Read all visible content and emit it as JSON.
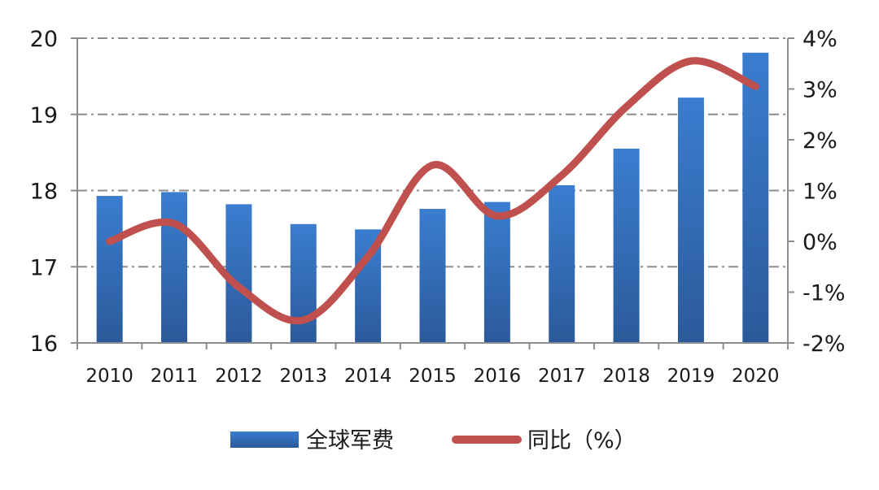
{
  "chart_data": {
    "type": "bar",
    "categories": [
      "2010",
      "2011",
      "2012",
      "2013",
      "2014",
      "2015",
      "2016",
      "2017",
      "2018",
      "2019",
      "2020"
    ],
    "series": [
      {
        "name": "全球军费",
        "type": "bar",
        "axis": "left",
        "color": "#3a72be",
        "values": [
          17.93,
          17.98,
          17.82,
          17.56,
          17.49,
          17.76,
          17.85,
          18.07,
          18.55,
          19.22,
          19.81
        ]
      },
      {
        "name": "同比（%）",
        "type": "line",
        "axis": "right",
        "color": "#c0504d",
        "values": [
          0.0,
          0.35,
          -0.9,
          -1.55,
          -0.3,
          1.5,
          0.5,
          1.3,
          2.65,
          3.55,
          3.05
        ]
      }
    ],
    "left_axis": {
      "ylim": [
        16,
        20
      ],
      "ticks": [
        "16",
        "17",
        "18",
        "19",
        "20"
      ]
    },
    "right_axis": {
      "ylim": [
        -2,
        4
      ],
      "ticks": [
        "-2%",
        "-1%",
        "0%",
        "1%",
        "2%",
        "3%",
        "4%"
      ]
    },
    "grid": true,
    "legend": {
      "position": "bottom"
    }
  }
}
